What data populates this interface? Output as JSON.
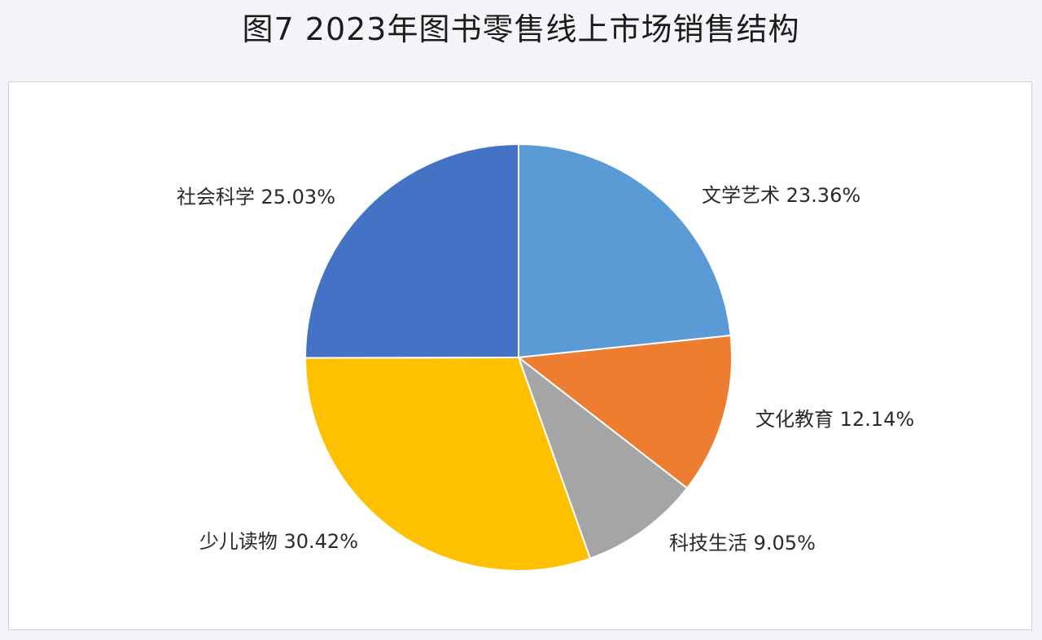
{
  "title": "图7 2023年图书零售线上市场销售结构",
  "chart_data": {
    "type": "pie",
    "title": "图7 2023年图书零售线上市场销售结构",
    "unit": "%",
    "start_angle_deg": 0,
    "direction": "clockwise",
    "slices": [
      {
        "name": "文学艺术",
        "value": 23.36,
        "label": "文学艺术 23.36%",
        "color": "#5b9bd5"
      },
      {
        "name": "文化教育",
        "value": 12.14,
        "label": "文化教育 12.14%",
        "color": "#ed7d31"
      },
      {
        "name": "科技生活",
        "value": 9.05,
        "label": "科技生活 9.05%",
        "color": "#a5a5a5"
      },
      {
        "name": "少儿读物",
        "value": 30.42,
        "label": "少儿读物 30.42%",
        "color": "#ffc000"
      },
      {
        "name": "社会科学",
        "value": 25.03,
        "label": "社会科学 25.03%",
        "color": "#4472c4"
      }
    ]
  }
}
